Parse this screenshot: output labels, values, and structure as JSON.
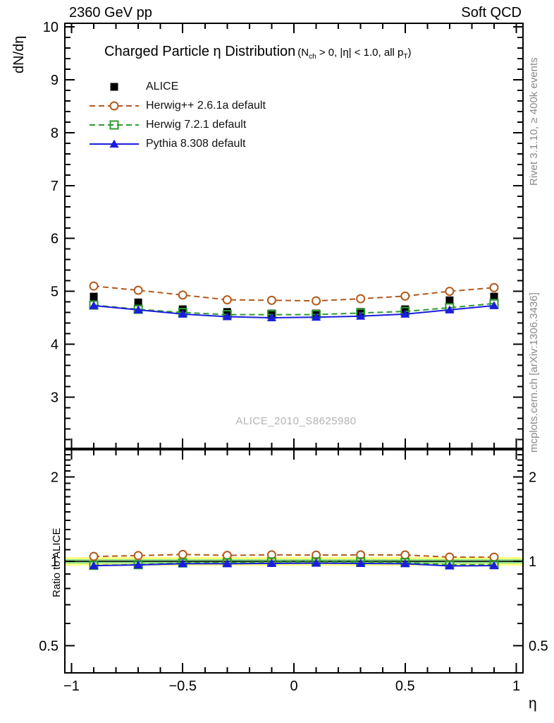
{
  "page": {
    "top_left_label": "2360 GeV pp",
    "top_right_label": "Soft QCD",
    "watermark": "ALICE_2010_S8625980",
    "side_note_top": "Rivet 3.1.10, ≥ 400k events",
    "side_note_bottom": "mcplots.cern.ch [arXiv:1306.3436]"
  },
  "chart_data": {
    "type": "line",
    "title": {
      "pre": "Charged Particle ",
      "symbol": "η",
      "post": " Distribution",
      "cond_pre": "(N",
      "cond_sub1": "ch",
      "cond_mid": " > 0, |η| < 1.0, all p",
      "cond_sub2": "T",
      "cond_close": ")"
    },
    "xlabel": "η",
    "ylabel_main": "dN/dη",
    "ylabel_ratio": "Ratio to ALICE",
    "x": [
      -0.9,
      -0.7,
      -0.5,
      -0.3,
      -0.1,
      0.1,
      0.3,
      0.5,
      0.7,
      0.9
    ],
    "series": [
      {
        "name": "ALICE",
        "color": "#000000",
        "marker": "square-filled",
        "line": "none",
        "values": [
          4.9,
          4.79,
          4.66,
          4.61,
          4.58,
          4.58,
          4.61,
          4.66,
          4.83,
          4.9
        ]
      },
      {
        "name": "Herwig++ 2.6.1a default",
        "color": "#b3591c",
        "marker": "circle-open",
        "line": "dashed",
        "values": [
          5.1,
          5.02,
          4.93,
          4.84,
          4.83,
          4.82,
          4.86,
          4.91,
          5.0,
          5.07
        ]
      },
      {
        "name": "Herwig 7.2.1 default",
        "color": "#2d9b2d",
        "marker": "square-open",
        "line": "dashed",
        "values": [
          4.74,
          4.66,
          4.6,
          4.56,
          4.56,
          4.56,
          4.59,
          4.62,
          4.69,
          4.77
        ]
      },
      {
        "name": "Pythia 8.308 default",
        "color": "#1c1cdf",
        "marker": "triangle-filled",
        "line": "solid",
        "values": [
          4.73,
          4.65,
          4.57,
          4.52,
          4.5,
          4.51,
          4.53,
          4.57,
          4.65,
          4.73
        ]
      }
    ],
    "reference_series": "ALICE",
    "xaxis": {
      "lim": [
        -1.03,
        1.03
      ],
      "ticks": [
        -1,
        -0.5,
        0,
        0.5,
        1
      ],
      "tick_labels": [
        "−1",
        "−0.5",
        "0",
        "0.5",
        "1"
      ],
      "minor_step": 0.1
    },
    "yaxis_main": {
      "lim": [
        2.03,
        10.07
      ],
      "ticks": [
        3,
        4,
        5,
        6,
        7,
        8,
        9,
        10
      ],
      "tick_labels": [
        "3",
        "4",
        "5",
        "6",
        "7",
        "8",
        "9",
        "10"
      ],
      "minor_step": 0.2
    },
    "yaxis_ratio": {
      "scale": "log",
      "lim": [
        0.4,
        2.5
      ],
      "ticks": [
        0.5,
        1,
        2
      ],
      "tick_labels": [
        "0.5",
        "1",
        "2"
      ]
    },
    "ratio_band": {
      "outer": [
        0.965,
        1.035
      ],
      "outer_color": "#ffff7d",
      "inner": [
        0.982,
        1.018
      ],
      "inner_color": "#8ee08e",
      "reference": 1,
      "reference_color": "#000000"
    },
    "legend_position": "top-left",
    "grid": false
  }
}
